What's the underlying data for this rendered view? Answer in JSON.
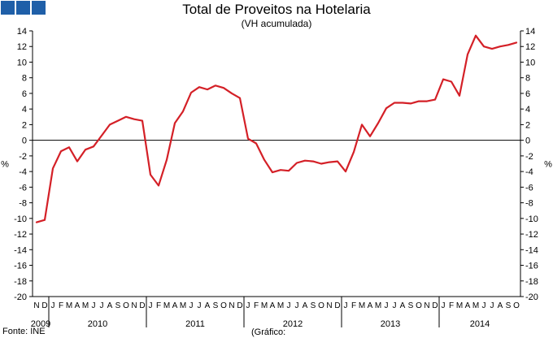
{
  "logo": {
    "icon": "ine-logo-icon",
    "color": "#1f5fa8"
  },
  "footer": {
    "source": "Fonte: INE",
    "note": "(Gráfico:"
  },
  "chart_data": {
    "type": "line",
    "title": "Total de Proveitos na Hotelaria",
    "subtitle": "(VH acumulada)",
    "ylabel": "%",
    "ylim": [
      -20,
      14
    ],
    "yticks": [
      14,
      12,
      10,
      8,
      6,
      4,
      2,
      0,
      -2,
      -4,
      -6,
      -8,
      -10,
      -12,
      -14,
      -16,
      -18,
      -20
    ],
    "y_axis_both_sides": true,
    "grid": false,
    "line_color": "#d42027",
    "month_labels": [
      "N",
      "D",
      "J",
      "F",
      "M",
      "A",
      "M",
      "J",
      "J",
      "A",
      "S",
      "O",
      "N",
      "D",
      "J",
      "F",
      "M",
      "A",
      "M",
      "J",
      "J",
      "A",
      "S",
      "O",
      "N",
      "D",
      "J",
      "F",
      "M",
      "A",
      "M",
      "J",
      "J",
      "A",
      "S",
      "O",
      "N",
      "D",
      "J",
      "F",
      "M",
      "A",
      "M",
      "J",
      "J",
      "A",
      "S",
      "O",
      "N",
      "D",
      "J",
      "F",
      "M",
      "A",
      "M",
      "J",
      "J",
      "A",
      "S",
      "O"
    ],
    "year_labels": [
      {
        "label": "2009",
        "start": 0,
        "end": 1
      },
      {
        "label": "2010",
        "start": 2,
        "end": 13
      },
      {
        "label": "2011",
        "start": 14,
        "end": 25
      },
      {
        "label": "2012",
        "start": 26,
        "end": 37
      },
      {
        "label": "2013",
        "start": 38,
        "end": 49
      },
      {
        "label": "2014",
        "start": 50,
        "end": 59
      }
    ],
    "series": [
      {
        "values": [
          -10.5,
          -10.2,
          -3.6,
          -1.4,
          -0.9,
          -2.7,
          -1.2,
          -0.8,
          0.6,
          2.0,
          2.5,
          3.0,
          2.7,
          2.5,
          -4.4,
          -5.8,
          -2.5,
          2.2,
          3.7,
          6.1,
          6.8,
          6.5,
          7.0,
          6.7,
          6.0,
          5.4,
          0.2,
          -0.4,
          -2.5,
          -4.1,
          -3.8,
          -3.9,
          -2.9,
          -2.6,
          -2.7,
          -3.0,
          -2.8,
          -2.7,
          -4.0,
          -1.5,
          2.0,
          0.5,
          2.2,
          4.1,
          4.8,
          4.8,
          4.7,
          5.0,
          5.0,
          5.2,
          7.8,
          7.5,
          5.7,
          11.0,
          13.4,
          12.0,
          11.7,
          12.0,
          12.2,
          12.5
        ]
      }
    ]
  }
}
